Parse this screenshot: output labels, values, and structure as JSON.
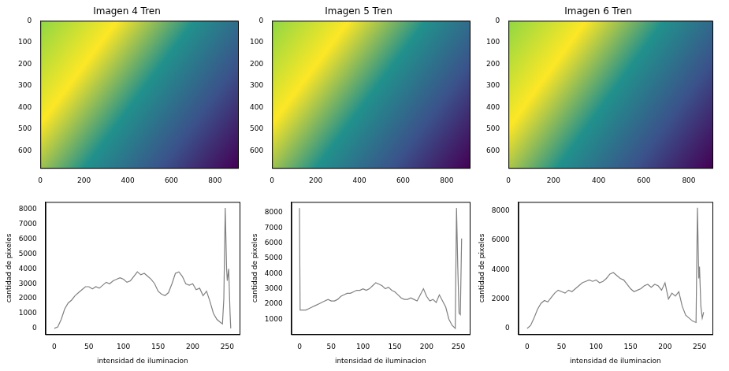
{
  "chart_data": [
    {
      "type": "image",
      "title": "Imagen 4 Tren",
      "xlim": [
        0,
        905
      ],
      "ylim": [
        680,
        0
      ],
      "xticks": [
        0,
        200,
        400,
        600,
        800
      ],
      "yticks": [
        0,
        100,
        200,
        300,
        400,
        500,
        600
      ]
    },
    {
      "type": "image",
      "title": "Imagen 5 Tren",
      "xlim": [
        0,
        905
      ],
      "ylim": [
        680,
        0
      ],
      "xticks": [
        0,
        200,
        400,
        600,
        800
      ],
      "yticks": [
        0,
        100,
        200,
        300,
        400,
        500,
        600
      ]
    },
    {
      "type": "image",
      "title": "Imagen 6 Tren",
      "xlim": [
        0,
        905
      ],
      "ylim": [
        680,
        0
      ],
      "xticks": [
        0,
        200,
        400,
        600,
        800
      ],
      "yticks": [
        0,
        100,
        200,
        300,
        400,
        500,
        600
      ]
    },
    {
      "type": "line",
      "color": "#808080",
      "x_label": "intensidad de iluminacion",
      "y_label": "cantidad de pixeles",
      "xlim": [
        -12.75,
        267.75
      ],
      "ylim": [
        -400,
        8500
      ],
      "xticks": [
        0,
        50,
        100,
        150,
        200,
        250
      ],
      "yticks": [
        0,
        1000,
        2000,
        3000,
        4000,
        5000,
        6000,
        7000,
        8000
      ],
      "x": [
        0,
        5,
        10,
        15,
        20,
        25,
        30,
        35,
        40,
        45,
        50,
        55,
        60,
        65,
        70,
        75,
        80,
        85,
        90,
        95,
        100,
        105,
        110,
        115,
        120,
        125,
        130,
        135,
        140,
        145,
        150,
        155,
        160,
        165,
        170,
        175,
        180,
        185,
        190,
        195,
        200,
        205,
        210,
        215,
        220,
        225,
        230,
        235,
        240,
        243,
        245,
        247,
        249,
        250,
        252,
        254,
        255
      ],
      "values": [
        0,
        100,
        600,
        1300,
        1700,
        1900,
        2200,
        2400,
        2600,
        2800,
        2800,
        2650,
        2800,
        2700,
        2900,
        3100,
        3000,
        3200,
        3300,
        3400,
        3300,
        3100,
        3200,
        3500,
        3800,
        3600,
        3700,
        3500,
        3300,
        3000,
        2500,
        2300,
        2200,
        2400,
        3000,
        3700,
        3800,
        3500,
        3000,
        2900,
        3000,
        2600,
        2700,
        2200,
        2500,
        1800,
        1000,
        600,
        400,
        300,
        2000,
        8100,
        4000,
        3200,
        4000,
        1000,
        0
      ]
    },
    {
      "type": "line",
      "color": "#808080",
      "x_label": "intensidad de iluminacion",
      "y_label": "cantidad de pixeles",
      "xlim": [
        -12.75,
        267.75
      ],
      "ylim": [
        10,
        8700
      ],
      "xticks": [
        0,
        50,
        100,
        150,
        200,
        250
      ],
      "yticks": [
        1000,
        2000,
        3000,
        4000,
        5000,
        6000,
        7000,
        8000
      ],
      "x": [
        0,
        1,
        5,
        10,
        15,
        20,
        25,
        30,
        35,
        40,
        45,
        50,
        55,
        60,
        65,
        70,
        75,
        80,
        85,
        90,
        95,
        100,
        105,
        110,
        115,
        120,
        125,
        130,
        135,
        140,
        145,
        150,
        155,
        160,
        165,
        170,
        175,
        180,
        185,
        190,
        195,
        200,
        205,
        210,
        215,
        220,
        225,
        230,
        235,
        240,
        245,
        247,
        249,
        251,
        253,
        255
      ],
      "values": [
        8300,
        1600,
        1600,
        1600,
        1700,
        1800,
        1900,
        2000,
        2100,
        2200,
        2300,
        2200,
        2200,
        2300,
        2500,
        2600,
        2700,
        2700,
        2800,
        2900,
        2900,
        3000,
        2900,
        3000,
        3200,
        3400,
        3300,
        3200,
        3000,
        3100,
        2900,
        2800,
        2600,
        2400,
        2300,
        2300,
        2400,
        2300,
        2200,
        2600,
        3000,
        2500,
        2200,
        2300,
        2100,
        2600,
        2200,
        1800,
        1000,
        600,
        400,
        8300,
        4400,
        1400,
        1300,
        6300
      ]
    },
    {
      "type": "line",
      "color": "#808080",
      "x_label": "intensidad de iluminacion",
      "y_label": "cantidad de pixeles",
      "xlim": [
        -12.75,
        268.8
      ],
      "ylim": [
        -400,
        8600
      ],
      "xticks": [
        0,
        50,
        100,
        150,
        200,
        250
      ],
      "yticks": [
        0,
        2000,
        4000,
        6000,
        8000
      ],
      "x": [
        0,
        5,
        10,
        15,
        20,
        25,
        30,
        35,
        40,
        45,
        50,
        55,
        60,
        65,
        70,
        75,
        80,
        85,
        90,
        95,
        100,
        105,
        110,
        115,
        120,
        125,
        130,
        135,
        140,
        145,
        150,
        155,
        160,
        165,
        170,
        175,
        180,
        185,
        190,
        195,
        200,
        205,
        210,
        215,
        220,
        225,
        230,
        235,
        240,
        245,
        247,
        249,
        250,
        252,
        254,
        256
      ],
      "values": [
        0,
        200,
        700,
        1300,
        1700,
        1900,
        1800,
        2100,
        2400,
        2600,
        2500,
        2400,
        2600,
        2500,
        2700,
        2900,
        3100,
        3200,
        3300,
        3200,
        3300,
        3100,
        3200,
        3400,
        3700,
        3800,
        3600,
        3400,
        3300,
        3000,
        2700,
        2500,
        2600,
        2700,
        2900,
        3000,
        2800,
        3000,
        2900,
        2600,
        3100,
        2000,
        2400,
        2200,
        2500,
        1500,
        900,
        700,
        500,
        400,
        8200,
        3400,
        4200,
        1500,
        700,
        1100
      ]
    }
  ]
}
